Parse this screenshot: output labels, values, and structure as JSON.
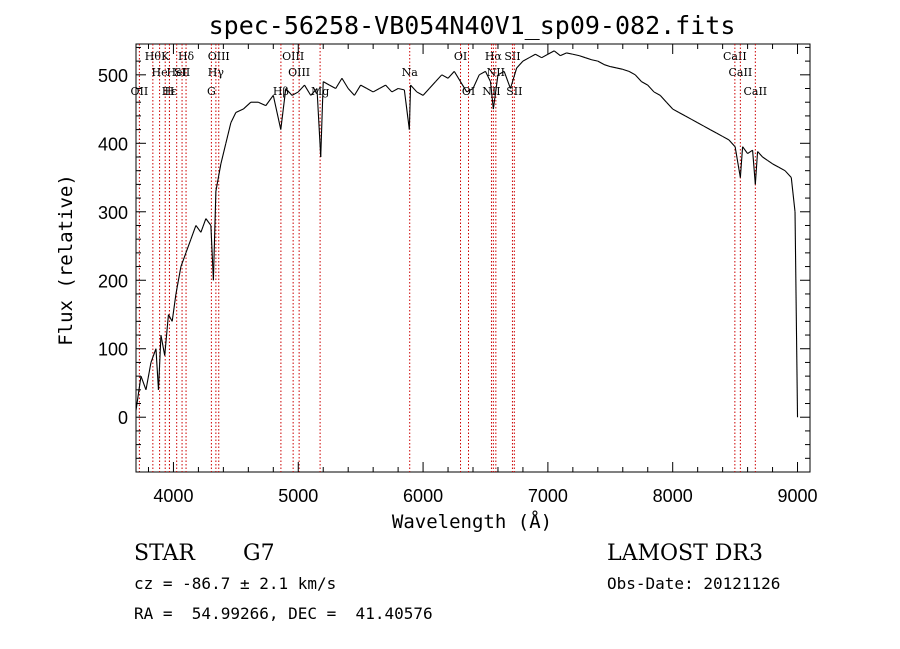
{
  "chart_data": {
    "type": "line",
    "title": "spec-56258-VB054N40V1_sp09-082.fits",
    "xlabel": "Wavelength (Å)",
    "ylabel": "Flux (relative)",
    "xlim": [
      3700,
      9100
    ],
    "ylim": [
      -80,
      545
    ],
    "xticks": [
      4000,
      5000,
      6000,
      7000,
      8000,
      9000
    ],
    "xtick_labels": [
      "4000",
      "5000",
      "6000",
      "7000",
      "8000",
      "9000"
    ],
    "yticks": [
      0,
      100,
      200,
      300,
      400,
      500
    ],
    "ytick_labels": [
      "0",
      "100",
      "200",
      "300",
      "400",
      "500"
    ],
    "series": [
      {
        "name": "flux",
        "x": [
          3700,
          3740,
          3780,
          3820,
          3860,
          3880,
          3900,
          3930,
          3960,
          3990,
          4020,
          4060,
          4100,
          4140,
          4180,
          4220,
          4260,
          4300,
          4320,
          4340,
          4380,
          4420,
          4460,
          4500,
          4560,
          4620,
          4680,
          4740,
          4800,
          4860,
          4900,
          4950,
          5000,
          5050,
          5100,
          5150,
          5180,
          5200,
          5250,
          5300,
          5350,
          5400,
          5450,
          5500,
          5550,
          5600,
          5650,
          5700,
          5750,
          5800,
          5850,
          5890,
          5900,
          5950,
          6000,
          6050,
          6100,
          6150,
          6200,
          6250,
          6300,
          6350,
          6400,
          6450,
          6500,
          6540,
          6563,
          6600,
          6650,
          6700,
          6750,
          6800,
          6850,
          6900,
          6950,
          7000,
          7050,
          7100,
          7150,
          7200,
          7250,
          7300,
          7350,
          7400,
          7450,
          7500,
          7550,
          7600,
          7650,
          7700,
          7750,
          7800,
          7850,
          7900,
          7950,
          8000,
          8050,
          8100,
          8150,
          8200,
          8250,
          8300,
          8350,
          8400,
          8450,
          8500,
          8542,
          8560,
          8600,
          8640,
          8662,
          8680,
          8720,
          8760,
          8800,
          8850,
          8900,
          8950,
          8980,
          9000
        ],
        "y": [
          10,
          60,
          40,
          80,
          100,
          40,
          120,
          90,
          150,
          140,
          180,
          220,
          240,
          260,
          280,
          270,
          290,
          280,
          200,
          330,
          370,
          400,
          430,
          445,
          450,
          460,
          460,
          455,
          470,
          420,
          480,
          470,
          475,
          485,
          470,
          480,
          380,
          490,
          485,
          480,
          495,
          480,
          470,
          485,
          480,
          475,
          480,
          485,
          475,
          480,
          478,
          420,
          485,
          475,
          470,
          480,
          490,
          500,
          495,
          505,
          490,
          475,
          480,
          500,
          505,
          490,
          450,
          500,
          505,
          480,
          510,
          520,
          525,
          530,
          525,
          530,
          535,
          528,
          532,
          530,
          528,
          525,
          522,
          520,
          515,
          512,
          510,
          508,
          505,
          500,
          490,
          485,
          475,
          470,
          460,
          450,
          445,
          440,
          435,
          430,
          425,
          420,
          415,
          410,
          405,
          395,
          350,
          395,
          385,
          390,
          340,
          388,
          380,
          375,
          370,
          365,
          360,
          350,
          300,
          0
        ]
      }
    ],
    "emission_lines": [
      {
        "wl": 3727,
        "label": "OII",
        "row": 3
      },
      {
        "wl": 3835,
        "label": "Hθ",
        "row": 1
      },
      {
        "wl": 3889,
        "label": "He",
        "row": 2
      },
      {
        "wl": 3934,
        "label": "K",
        "row": 1
      },
      {
        "wl": 3968,
        "label": "Hε",
        "row": 3
      },
      {
        "wl": 4026,
        "label": "HeI",
        "row": 2
      },
      {
        "wl": 4101,
        "label": "Hδ",
        "row": 1
      },
      {
        "wl": 4069,
        "label": "SII",
        "row": 2
      },
      {
        "wl": 3968,
        "label": "H",
        "row": 3
      },
      {
        "wl": 4340,
        "label": "Hγ",
        "row": 2
      },
      {
        "wl": 4304,
        "label": "G",
        "row": 3
      },
      {
        "wl": 4363,
        "label": "OIII",
        "row": 1
      },
      {
        "wl": 4861,
        "label": "Hβ",
        "row": 3
      },
      {
        "wl": 4959,
        "label": "OIII",
        "row": 1
      },
      {
        "wl": 5007,
        "label": "OIII",
        "row": 2
      },
      {
        "wl": 5175,
        "label": "Mg",
        "row": 3
      },
      {
        "wl": 5893,
        "label": "Na",
        "row": 2
      },
      {
        "wl": 6300,
        "label": "OI",
        "row": 1
      },
      {
        "wl": 6364,
        "label": "OI",
        "row": 3
      },
      {
        "wl": 6548,
        "label": "NII",
        "row": 3
      },
      {
        "wl": 6563,
        "label": "Hα",
        "row": 1
      },
      {
        "wl": 6583,
        "label": "NII",
        "row": 2
      },
      {
        "wl": 6716,
        "label": "SII",
        "row": 1
      },
      {
        "wl": 6731,
        "label": "SII",
        "row": 3
      },
      {
        "wl": 8498,
        "label": "CaII",
        "row": 1
      },
      {
        "wl": 8542,
        "label": "CaII",
        "row": 2
      },
      {
        "wl": 8662,
        "label": "CaII",
        "row": 3
      }
    ],
    "line_color": "#cc0000"
  },
  "info": {
    "object_type": "STAR",
    "subclass": "G7",
    "survey": "LAMOST DR3",
    "cz": "cz = -86.7 ± 2.1 km/s",
    "obs_date": "Obs-Date: 20121126",
    "coords": "RA =  54.99266, DEC =  41.40576"
  }
}
